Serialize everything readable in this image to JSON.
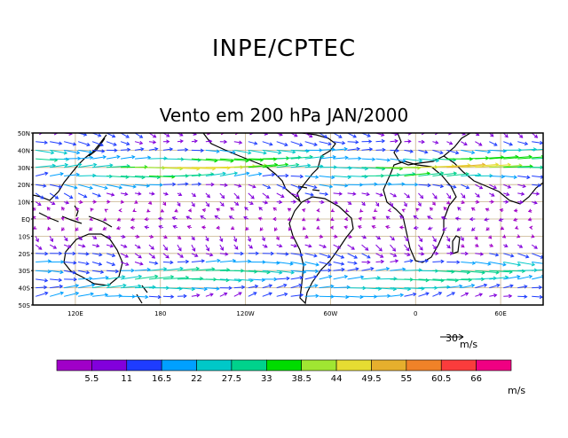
{
  "header": {
    "title": "INPE/CPTEC",
    "subtitle": "Vento em 200 hPa JAN/2000"
  },
  "chart_data": {
    "type": "vector-field",
    "title": "Vento em 200 hPa JAN/2000",
    "lon_range": [
      90,
      450
    ],
    "lat_range": [
      -50,
      50
    ],
    "lat_ticks": [
      {
        "lat": 50,
        "label": "50N"
      },
      {
        "lat": 40,
        "label": "40N"
      },
      {
        "lat": 30,
        "label": "30N"
      },
      {
        "lat": 20,
        "label": "20N"
      },
      {
        "lat": 10,
        "label": "10N"
      },
      {
        "lat": 0,
        "label": "EQ"
      },
      {
        "lat": -10,
        "label": "10S"
      },
      {
        "lat": -20,
        "label": "20S"
      },
      {
        "lat": -30,
        "label": "30S"
      },
      {
        "lat": -40,
        "label": "40S"
      },
      {
        "lat": -50,
        "label": "50S"
      }
    ],
    "lon_ticks": [
      {
        "lon": 120,
        "label": "120E"
      },
      {
        "lon": 180,
        "label": "180"
      },
      {
        "lon": 240,
        "label": "120W"
      },
      {
        "lon": 300,
        "label": "60W"
      },
      {
        "lon": 360,
        "label": "0"
      },
      {
        "lon": 420,
        "label": "60E"
      }
    ],
    "grid": true,
    "reference_vector": {
      "value": "30",
      "unit": "m/s"
    },
    "colorbar": {
      "labels": [
        "5.5",
        "11",
        "16.5",
        "22",
        "27.5",
        "33",
        "38.5",
        "44",
        "49.5",
        "55",
        "60.5",
        "66"
      ],
      "unit": "m/s",
      "colors": [
        "#a000c8",
        "#8200dc",
        "#1e3cff",
        "#00a0ff",
        "#00c8c8",
        "#00d28c",
        "#00dc00",
        "#a0e632",
        "#e6dc32",
        "#e6af2d",
        "#f08228",
        "#fa3c3c",
        "#f00082"
      ]
    },
    "rows": [
      {
        "lat": 50,
        "u": 10,
        "v": -3
      },
      {
        "lat": 45,
        "u": 14,
        "v": -2
      },
      {
        "lat": 40,
        "u": 22,
        "v": -1
      },
      {
        "lat": 35,
        "u": 34,
        "v": 0
      },
      {
        "lat": 30,
        "u": 45,
        "v": 1
      },
      {
        "lat": 25,
        "u": 30,
        "v": 1
      },
      {
        "lat": 20,
        "u": 18,
        "v": -2
      },
      {
        "lat": 15,
        "u": 10,
        "v": -4
      },
      {
        "lat": 10,
        "u": 6,
        "v": -3
      },
      {
        "lat": 5,
        "u": -4,
        "v": 1
      },
      {
        "lat": 0,
        "u": -6,
        "v": 1
      },
      {
        "lat": -5,
        "u": -5,
        "v": -1
      },
      {
        "lat": -10,
        "u": 5,
        "v": -4
      },
      {
        "lat": -15,
        "u": 8,
        "v": -5
      },
      {
        "lat": -20,
        "u": 14,
        "v": -3
      },
      {
        "lat": -25,
        "u": 20,
        "v": -1
      },
      {
        "lat": -30,
        "u": 28,
        "v": 0
      },
      {
        "lat": -35,
        "u": 30,
        "v": 1
      },
      {
        "lat": -40,
        "u": 24,
        "v": 1
      },
      {
        "lat": -45,
        "u": 18,
        "v": 2
      }
    ]
  }
}
